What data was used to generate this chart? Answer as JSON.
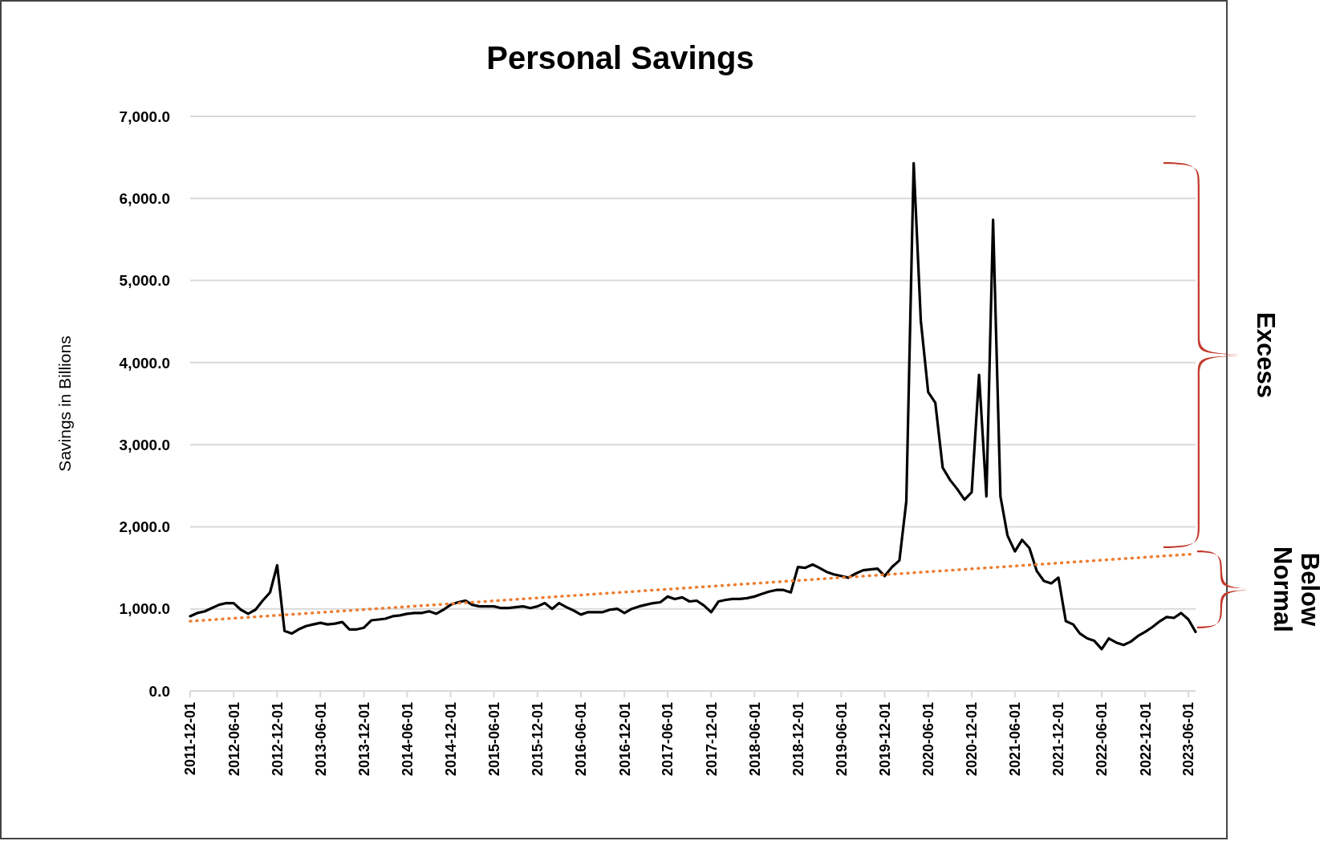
{
  "chart_data": {
    "type": "line",
    "title": "Personal Savings",
    "ylabel": "Savings in Billions",
    "x": [
      "2011-12-01",
      "2012-01-01",
      "2012-02-01",
      "2012-03-01",
      "2012-04-01",
      "2012-05-01",
      "2012-06-01",
      "2012-07-01",
      "2012-08-01",
      "2012-09-01",
      "2012-10-01",
      "2012-11-01",
      "2012-12-01",
      "2013-01-01",
      "2013-02-01",
      "2013-03-01",
      "2013-04-01",
      "2013-05-01",
      "2013-06-01",
      "2013-07-01",
      "2013-08-01",
      "2013-09-01",
      "2013-10-01",
      "2013-11-01",
      "2013-12-01",
      "2014-01-01",
      "2014-02-01",
      "2014-03-01",
      "2014-04-01",
      "2014-05-01",
      "2014-06-01",
      "2014-07-01",
      "2014-08-01",
      "2014-09-01",
      "2014-10-01",
      "2014-11-01",
      "2014-12-01",
      "2015-01-01",
      "2015-02-01",
      "2015-03-01",
      "2015-04-01",
      "2015-05-01",
      "2015-06-01",
      "2015-07-01",
      "2015-08-01",
      "2015-09-01",
      "2015-10-01",
      "2015-11-01",
      "2015-12-01",
      "2016-01-01",
      "2016-02-01",
      "2016-03-01",
      "2016-04-01",
      "2016-05-01",
      "2016-06-01",
      "2016-07-01",
      "2016-08-01",
      "2016-09-01",
      "2016-10-01",
      "2016-11-01",
      "2016-12-01",
      "2017-01-01",
      "2017-02-01",
      "2017-03-01",
      "2017-04-01",
      "2017-05-01",
      "2017-06-01",
      "2017-07-01",
      "2017-08-01",
      "2017-09-01",
      "2017-10-01",
      "2017-11-01",
      "2017-12-01",
      "2018-01-01",
      "2018-02-01",
      "2018-03-01",
      "2018-04-01",
      "2018-05-01",
      "2018-06-01",
      "2018-07-01",
      "2018-08-01",
      "2018-09-01",
      "2018-10-01",
      "2018-11-01",
      "2018-12-01",
      "2019-01-01",
      "2019-02-01",
      "2019-03-01",
      "2019-04-01",
      "2019-05-01",
      "2019-06-01",
      "2019-07-01",
      "2019-08-01",
      "2019-09-01",
      "2019-10-01",
      "2019-11-01",
      "2019-12-01",
      "2020-01-01",
      "2020-02-01",
      "2020-03-01",
      "2020-04-01",
      "2020-05-01",
      "2020-06-01",
      "2020-07-01",
      "2020-08-01",
      "2020-09-01",
      "2020-10-01",
      "2020-11-01",
      "2020-12-01",
      "2021-01-01",
      "2021-02-01",
      "2021-03-01",
      "2021-04-01",
      "2021-05-01",
      "2021-06-01",
      "2021-07-01",
      "2021-08-01",
      "2021-09-01",
      "2021-10-01",
      "2021-11-01",
      "2021-12-01",
      "2022-01-01",
      "2022-02-01",
      "2022-03-01",
      "2022-04-01",
      "2022-05-01",
      "2022-06-01",
      "2022-07-01",
      "2022-08-01",
      "2022-09-01",
      "2022-10-01",
      "2022-11-01",
      "2022-12-01",
      "2023-01-01",
      "2023-02-01",
      "2023-03-01",
      "2023-04-01",
      "2023-05-01",
      "2023-06-01",
      "2023-07-01"
    ],
    "series": [
      {
        "color": "#000000",
        "values": [
          910,
          950,
          970,
          1010,
          1050,
          1070,
          1070,
          990,
          940,
          990,
          1100,
          1200,
          1530,
          730,
          700,
          750,
          790,
          810,
          830,
          810,
          820,
          840,
          750,
          750,
          770,
          860,
          870,
          880,
          910,
          920,
          940,
          950,
          950,
          970,
          940,
          990,
          1050,
          1080,
          1100,
          1050,
          1030,
          1030,
          1030,
          1010,
          1010,
          1020,
          1030,
          1010,
          1030,
          1070,
          1000,
          1070,
          1020,
          980,
          930,
          960,
          960,
          960,
          990,
          1000,
          950,
          1000,
          1030,
          1050,
          1070,
          1080,
          1150,
          1120,
          1140,
          1090,
          1100,
          1040,
          960,
          1090,
          1110,
          1120,
          1120,
          1130,
          1150,
          1180,
          1210,
          1230,
          1230,
          1200,
          1510,
          1500,
          1540,
          1500,
          1450,
          1420,
          1400,
          1380,
          1430,
          1470,
          1480,
          1490,
          1400,
          1510,
          1590,
          2310,
          6430,
          4510,
          3640,
          3510,
          2720,
          2570,
          2460,
          2330,
          2420,
          3850,
          2370,
          5740,
          2370,
          1890,
          1700,
          1840,
          1740,
          1460,
          1340,
          1310,
          1380,
          850,
          810,
          700,
          640,
          610,
          510,
          640,
          590,
          560,
          600,
          670,
          720,
          780,
          850,
          900,
          890,
          950,
          870,
          720
        ]
      },
      {
        "type": "line",
        "color": "#ed7d31",
        "line_style": "dotted",
        "x": [
          "2011-12-01",
          "2023-07-01"
        ],
        "values": [
          850,
          1670
        ]
      }
    ],
    "xlim": [
      "2011-12-01",
      "2023-07-01"
    ],
    "xticks": [
      "2011-12-01",
      "2012-06-01",
      "2012-12-01",
      "2013-06-01",
      "2013-12-01",
      "2014-06-01",
      "2014-12-01",
      "2015-06-01",
      "2015-12-01",
      "2016-06-01",
      "2016-12-01",
      "2017-06-01",
      "2017-12-01",
      "2018-06-01",
      "2018-12-01",
      "2019-06-01",
      "2019-12-01",
      "2020-06-01",
      "2020-12-01",
      "2021-06-01",
      "2021-12-01",
      "2022-06-01",
      "2022-12-01",
      "2023-06-01"
    ],
    "ylim": [
      0,
      7000
    ],
    "yticks": [
      {
        "value": 0,
        "label": "0.0"
      },
      {
        "value": 1000,
        "label": "1,000.0"
      },
      {
        "value": 2000,
        "label": "2,000.0"
      },
      {
        "value": 3000,
        "label": "3,000.0"
      },
      {
        "value": 4000,
        "label": "4,000.0"
      },
      {
        "value": 5000,
        "label": "5,000.0"
      },
      {
        "value": 6000,
        "label": "6,000.0"
      },
      {
        "value": 7000,
        "label": "7,000.0"
      }
    ],
    "grid": "y",
    "marker": "none",
    "line_style": "solid",
    "annotations": [
      "Excess",
      "Below Normal"
    ]
  }
}
